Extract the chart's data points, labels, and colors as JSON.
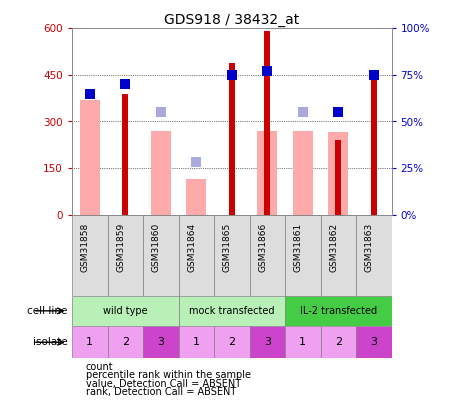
{
  "title": "GDS918 / 38432_at",
  "samples": [
    "GSM31858",
    "GSM31859",
    "GSM31860",
    "GSM31864",
    "GSM31865",
    "GSM31866",
    "GSM31861",
    "GSM31862",
    "GSM31863"
  ],
  "count_values": [
    null,
    390,
    null,
    null,
    490,
    590,
    null,
    240,
    450
  ],
  "percentile_rank": [
    65,
    70,
    null,
    null,
    75,
    77,
    null,
    55,
    75
  ],
  "absent_value": [
    370,
    null,
    270,
    115,
    null,
    270,
    270,
    265,
    null
  ],
  "absent_rank": [
    null,
    null,
    55,
    28,
    null,
    null,
    55,
    null,
    null
  ],
  "ylim_left": [
    0,
    600
  ],
  "ylim_right": [
    0,
    100
  ],
  "yticks_left": [
    0,
    150,
    300,
    450,
    600
  ],
  "ytick_labels_left": [
    "0",
    "150",
    "300",
    "450",
    "600"
  ],
  "yticks_right": [
    0,
    25,
    50,
    75,
    100
  ],
  "ytick_labels_right": [
    "0%",
    "25%",
    "50%",
    "75%",
    "100%"
  ],
  "cell_line_groups": [
    {
      "label": "wild type",
      "start": 0,
      "end": 3,
      "color": "#b8f0b8"
    },
    {
      "label": "mock transfected",
      "start": 3,
      "end": 6,
      "color": "#b8f0b8"
    },
    {
      "label": "IL-2 transfected",
      "start": 6,
      "end": 9,
      "color": "#44cc44"
    }
  ],
  "isolate_labels": [
    "1",
    "2",
    "3",
    "1",
    "2",
    "3",
    "1",
    "2",
    "3"
  ],
  "isolate_colors_bg": [
    "#f0a0f0",
    "#f0a0f0",
    "#cc44cc",
    "#f0a0f0",
    "#f0a0f0",
    "#cc44cc",
    "#f0a0f0",
    "#f0a0f0",
    "#cc44cc"
  ],
  "color_count": "#cc0000",
  "color_percentile": "#0000cc",
  "color_absent_value": "#ffaaaa",
  "color_absent_rank": "#aaaadd",
  "legend_items": [
    {
      "color": "#cc0000",
      "label": "count"
    },
    {
      "color": "#0000cc",
      "label": "percentile rank within the sample"
    },
    {
      "color": "#ffaaaa",
      "label": "value, Detection Call = ABSENT"
    },
    {
      "color": "#aaaadd",
      "label": "rank, Detection Call = ABSENT"
    }
  ]
}
